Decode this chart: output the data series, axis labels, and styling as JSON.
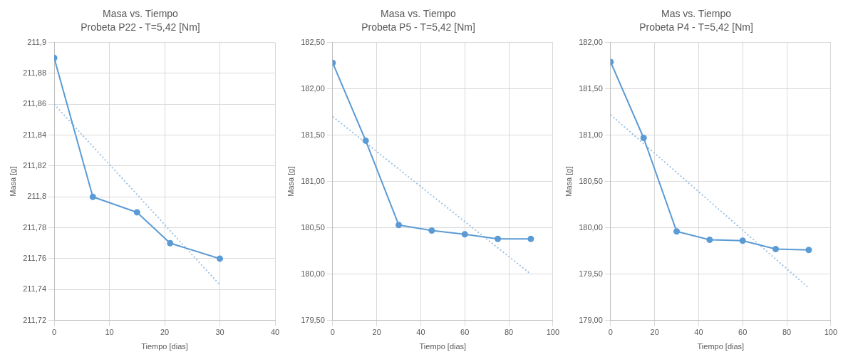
{
  "chart_data": [
    {
      "type": "line",
      "title": "Masa vs. Tiempo",
      "subtitle": "Probeta P22 - T=5,42 [Nm]",
      "xlabel": "Tiempo [dias]",
      "ylabel": "Masa [g]",
      "x": [
        0,
        7,
        15,
        21,
        30
      ],
      "series": [
        {
          "color": "#5b9bd5",
          "values": [
            211.89,
            211.8,
            211.79,
            211.77,
            211.76
          ],
          "marker": "circle",
          "line_style": "solid"
        },
        {
          "type": "line",
          "x": [
            0,
            30
          ],
          "color": "#9dc3e6",
          "values": [
            211.86,
            211.743
          ],
          "marker": "none",
          "line_style": "dotted"
        }
      ],
      "xlim": [
        0,
        40
      ],
      "xticks": [
        0,
        10,
        20,
        30,
        40
      ],
      "ylim": [
        211.72,
        211.9
      ],
      "yticks": [
        {
          "value": 211.72,
          "label": "211,72"
        },
        {
          "value": 211.74,
          "label": "211,74"
        },
        {
          "value": 211.76,
          "label": "211,76"
        },
        {
          "value": 211.78,
          "label": "211,78"
        },
        {
          "value": 211.8,
          "label": "211,8"
        },
        {
          "value": 211.82,
          "label": "211,82"
        },
        {
          "value": 211.84,
          "label": "211,84"
        },
        {
          "value": 211.86,
          "label": "211,86"
        },
        {
          "value": 211.88,
          "label": "211,88"
        },
        {
          "value": 211.9,
          "label": "211,9"
        }
      ],
      "grid": true
    },
    {
      "type": "line",
      "title": "Masa vs. Tiempo",
      "subtitle": "Probeta P5 - T=5,42 [Nm]",
      "xlabel": "Tiempo [dias]",
      "ylabel": "Masa [g]",
      "x": [
        0,
        15,
        30,
        45,
        60,
        75,
        90
      ],
      "series": [
        {
          "color": "#5b9bd5",
          "values": [
            182.28,
            181.44,
            180.53,
            180.47,
            180.43,
            180.38,
            180.38
          ],
          "marker": "circle",
          "line_style": "solid"
        },
        {
          "type": "line",
          "x": [
            0,
            90
          ],
          "color": "#9dc3e6",
          "values": [
            181.7,
            180.0
          ],
          "marker": "none",
          "line_style": "dotted"
        }
      ],
      "xlim": [
        0,
        100
      ],
      "xticks": [
        0,
        20,
        40,
        60,
        80,
        100
      ],
      "ylim": [
        179.5,
        182.5
      ],
      "yticks": [
        {
          "value": 179.5,
          "label": "179,50"
        },
        {
          "value": 180,
          "label": "180,00"
        },
        {
          "value": 180.5,
          "label": "180,50"
        },
        {
          "value": 181,
          "label": "181,00"
        },
        {
          "value": 181.5,
          "label": "181,50"
        },
        {
          "value": 182,
          "label": "182,00"
        },
        {
          "value": 182.5,
          "label": "182,50"
        }
      ],
      "grid": true
    },
    {
      "type": "line",
      "title": "Mas vs. Tiempo",
      "subtitle": "Probeta P4 - T=5,42 [Nm]",
      "xlabel": "Tiempo [dias]",
      "ylabel": "Masa [g]",
      "x": [
        0,
        15,
        30,
        45,
        60,
        75,
        90
      ],
      "series": [
        {
          "color": "#5b9bd5",
          "values": [
            181.79,
            180.97,
            179.96,
            179.87,
            179.86,
            179.77,
            179.76
          ],
          "marker": "circle",
          "line_style": "solid"
        },
        {
          "type": "line",
          "x": [
            0,
            90
          ],
          "color": "#9dc3e6",
          "values": [
            181.22,
            179.35
          ],
          "marker": "none",
          "line_style": "dotted"
        }
      ],
      "xlim": [
        0,
        100
      ],
      "xticks": [
        0,
        20,
        40,
        60,
        80,
        100
      ],
      "ylim": [
        179,
        182
      ],
      "yticks": [
        {
          "value": 179,
          "label": "179,00"
        },
        {
          "value": 179.5,
          "label": "179,50"
        },
        {
          "value": 180,
          "label": "180,00"
        },
        {
          "value": 180.5,
          "label": "180,50"
        },
        {
          "value": 181,
          "label": "181,00"
        },
        {
          "value": 181.5,
          "label": "181,50"
        },
        {
          "value": 182,
          "label": "182,00"
        }
      ],
      "grid": true
    }
  ]
}
